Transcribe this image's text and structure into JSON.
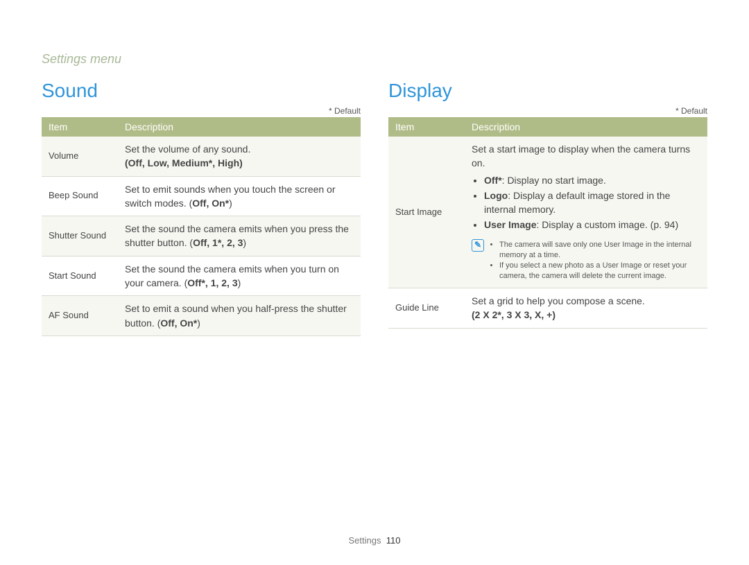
{
  "breadcrumb": "Settings menu",
  "defaultNote": "* Default",
  "sound": {
    "title": "Sound",
    "headers": {
      "item": "Item",
      "desc": "Description"
    },
    "rows": {
      "volume": {
        "item": "Volume",
        "desc": "Set the volume of any sound.",
        "opts": "(Off, Low, Medium*, High)"
      },
      "beep": {
        "item": "Beep Sound",
        "desc_a": "Set to emit sounds when you touch the screen or switch modes. (",
        "opts": "Off, On*",
        "desc_b": ")"
      },
      "shutter": {
        "item": "Shutter Sound",
        "desc_a": "Set the sound the camera emits when you press the shutter button. (",
        "opts": "Off, 1*, 2, 3",
        "desc_b": ")"
      },
      "start": {
        "item": "Start Sound",
        "desc_a": "Set the sound the camera emits when you turn on your camera. (",
        "opts": "Off*, 1, 2, 3",
        "desc_b": ")"
      },
      "af": {
        "item": "AF Sound",
        "desc_a": "Set to emit a sound when you half-press the shutter button. (",
        "opts": "Off, On*",
        "desc_b": ")"
      }
    }
  },
  "display": {
    "title": "Display",
    "headers": {
      "item": "Item",
      "desc": "Description"
    },
    "startImage": {
      "item": "Start Image",
      "intro": "Set a start image to display when the camera turns on.",
      "b1_label": "Off*",
      "b1_text": ": Display no start image.",
      "b2_label": "Logo",
      "b2_text": ": Display a default image stored in the internal memory.",
      "b3_label": "User Image",
      "b3_text": ": Display a custom image. (p. 94)",
      "note1": "The camera will save only one User Image in the internal memory at a time.",
      "note2": "If you select a new photo as a User Image or reset your camera, the camera will delete the current image."
    },
    "guideLine": {
      "item": "Guide Line",
      "desc": "Set a grid to help you compose a scene.",
      "opts": "(2 X 2*, 3 X 3, X, +)"
    }
  },
  "footer": {
    "section": "Settings",
    "page": "110"
  }
}
